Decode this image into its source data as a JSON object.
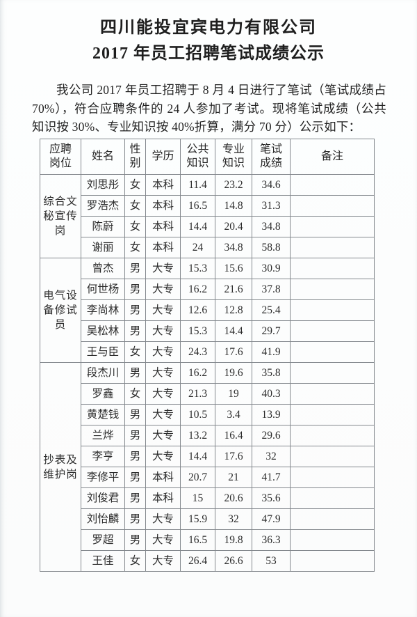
{
  "document": {
    "title_line1": "四川能投宜宾电力有限公司",
    "title_line2": "2017 年员工招聘笔试成绩公示",
    "intro_paragraph": "我公司 2017 年员工招聘于 8 月 4 日进行了笔试（笔试成绩占 70%），符合应聘条件的 24 人参加了考试。现将笔试成绩（公共知识按 30%、专业知识按 40%折算，满分 70 分）公示如下："
  },
  "table": {
    "headers": [
      "应聘\n岗位",
      "姓名",
      "性\n别",
      "学历",
      "公共\n知识",
      "专业\n知识",
      "笔试\n成绩",
      "备注"
    ],
    "groups": [
      {
        "position_label": "综合文\n秘宣传\n岗",
        "position_name": "综合文秘宣传岗",
        "rows": [
          {
            "name": "刘思彤",
            "gender": "女",
            "education": "本科",
            "public_score": "11.4",
            "professional_score": "23.2",
            "written_score": "34.6",
            "remark": ""
          },
          {
            "name": "罗浩杰",
            "gender": "女",
            "education": "本科",
            "public_score": "16.5",
            "professional_score": "14.8",
            "written_score": "31.3",
            "remark": ""
          },
          {
            "name": "陈蔚",
            "gender": "女",
            "education": "本科",
            "public_score": "14.4",
            "professional_score": "20.4",
            "written_score": "34.8",
            "remark": ""
          },
          {
            "name": "谢丽",
            "gender": "女",
            "education": "本科",
            "public_score": "24",
            "professional_score": "34.8",
            "written_score": "58.8",
            "remark": ""
          }
        ]
      },
      {
        "position_label": "电气设\n备修试\n员",
        "position_name": "电气设备修试员",
        "rows": [
          {
            "name": "曾杰",
            "gender": "男",
            "education": "大专",
            "public_score": "15.3",
            "professional_score": "15.6",
            "written_score": "30.9",
            "remark": ""
          },
          {
            "name": "何世杨",
            "gender": "男",
            "education": "大专",
            "public_score": "16.2",
            "professional_score": "21.6",
            "written_score": "37.8",
            "remark": ""
          },
          {
            "name": "李尚林",
            "gender": "男",
            "education": "大专",
            "public_score": "12.6",
            "professional_score": "12.8",
            "written_score": "25.4",
            "remark": ""
          },
          {
            "name": "吴松林",
            "gender": "男",
            "education": "大专",
            "public_score": "15.3",
            "professional_score": "14.4",
            "written_score": "29.7",
            "remark": ""
          },
          {
            "name": "王与臣",
            "gender": "女",
            "education": "大专",
            "public_score": "24.3",
            "professional_score": "17.6",
            "written_score": "41.9",
            "remark": ""
          }
        ]
      },
      {
        "position_label": "抄表及\n维护岗",
        "position_name": "抄表及维护岗",
        "rows": [
          {
            "name": "段杰川",
            "gender": "男",
            "education": "大专",
            "public_score": "16.2",
            "professional_score": "19.6",
            "written_score": "35.8",
            "remark": ""
          },
          {
            "name": "罗鑫",
            "gender": "女",
            "education": "大专",
            "public_score": "21.3",
            "professional_score": "19",
            "written_score": "40.3",
            "remark": ""
          },
          {
            "name": "黄楚钱",
            "gender": "男",
            "education": "大专",
            "public_score": "10.5",
            "professional_score": "3.4",
            "written_score": "13.9",
            "remark": ""
          },
          {
            "name": "兰烨",
            "gender": "男",
            "education": "大专",
            "public_score": "13.2",
            "professional_score": "16.4",
            "written_score": "29.6",
            "remark": ""
          },
          {
            "name": "李亨",
            "gender": "男",
            "education": "大专",
            "public_score": "14.4",
            "professional_score": "17.6",
            "written_score": "32",
            "remark": ""
          },
          {
            "name": "李修平",
            "gender": "男",
            "education": "本科",
            "public_score": "20.7",
            "professional_score": "21",
            "written_score": "41.7",
            "remark": ""
          },
          {
            "name": "刘俊君",
            "gender": "男",
            "education": "本科",
            "public_score": "15",
            "professional_score": "20.6",
            "written_score": "35.6",
            "remark": ""
          },
          {
            "name": "刘怡麟",
            "gender": "男",
            "education": "大专",
            "public_score": "15.9",
            "professional_score": "32",
            "written_score": "47.9",
            "remark": ""
          },
          {
            "name": "罗超",
            "gender": "男",
            "education": "大专",
            "public_score": "16.5",
            "professional_score": "19.8",
            "written_score": "36.3",
            "remark": ""
          },
          {
            "name": "王佳",
            "gender": "女",
            "education": "大专",
            "public_score": "26.4",
            "professional_score": "26.6",
            "written_score": "53",
            "remark": ""
          }
        ]
      }
    ]
  }
}
